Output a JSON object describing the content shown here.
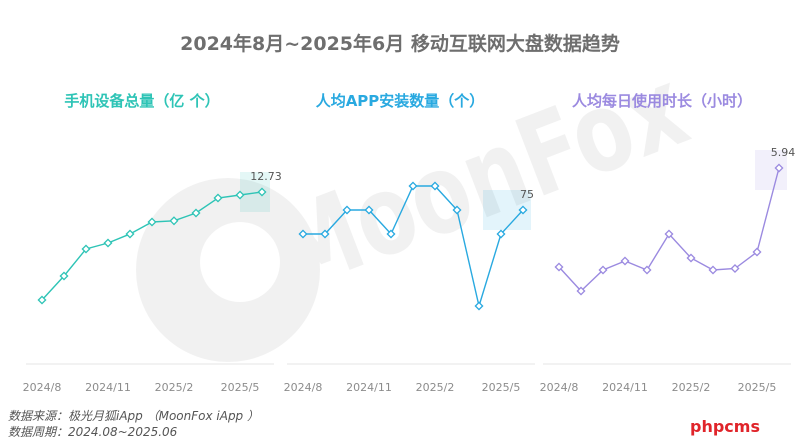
{
  "title": "2024年8月~2025年6月 移动互联网大盘数据趋势",
  "watermark": "MoonFox",
  "footer": {
    "source": "数据来源：极光月狐iApp （MoonFox iApp ）",
    "period": "数据周期：2024.08~2025.06"
  },
  "site_badge": "phpcms",
  "colors": {
    "panel1": "#2ec4b6",
    "panel2": "#29a9e0",
    "panel3": "#9b8ae0"
  },
  "chart_data": [
    {
      "type": "line",
      "title": "手机设备总量（亿 个）",
      "x": [
        "2024/8",
        "2024/9",
        "2024/10",
        "2024/11",
        "2024/12",
        "2025/1",
        "2025/2",
        "2025/3",
        "2025/4",
        "2025/5",
        "2025/6"
      ],
      "xticks": [
        "2024/8",
        "2024/11",
        "2025/2",
        "2025/5"
      ],
      "values": [
        12.55,
        12.59,
        12.635,
        12.645,
        12.66,
        12.68,
        12.682,
        12.695,
        12.72,
        12.725,
        12.73
      ],
      "last_label": "12.73",
      "ylim": [
        12.5,
        12.8
      ]
    },
    {
      "type": "line",
      "title": "人均APP安装数量（个）",
      "x": [
        "2024/8",
        "2024/9",
        "2024/10",
        "2024/11",
        "2024/12",
        "2025/1",
        "2025/2",
        "2025/3",
        "2025/4",
        "2025/5",
        "2025/6"
      ],
      "xticks": [
        "2024/8",
        "2024/11",
        "2025/2",
        "2025/5"
      ],
      "values": [
        74,
        74,
        75,
        75,
        74,
        76,
        76,
        75,
        71,
        74,
        75
      ],
      "last_label": "75",
      "ylim": [
        70,
        77.5
      ]
    },
    {
      "type": "line",
      "title": "人均每日使用时长（小时）",
      "x": [
        "2024/8",
        "2024/9",
        "2024/10",
        "2024/11",
        "2024/12",
        "2025/1",
        "2025/2",
        "2025/3",
        "2025/4",
        "2025/5",
        "2025/6"
      ],
      "xticks": [
        "2024/8",
        "2024/11",
        "2025/2",
        "2025/5"
      ],
      "values": [
        5.61,
        5.53,
        5.6,
        5.63,
        5.6,
        5.72,
        5.64,
        5.6,
        5.605,
        5.66,
        5.94
      ],
      "last_label": "5.94",
      "ylim": [
        5.4,
        6.0
      ]
    }
  ]
}
